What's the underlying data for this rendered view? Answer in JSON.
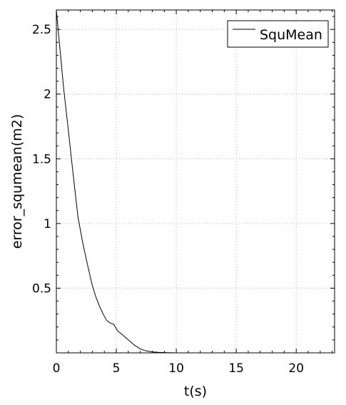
{
  "chart_data": {
    "type": "line",
    "xlabel": "t(s)",
    "ylabel": "error_squmean(m2)",
    "xlim": [
      0,
      23.2
    ],
    "ylim": [
      0,
      2.65
    ],
    "xticks": [
      0,
      5,
      10,
      15,
      20
    ],
    "xtick_labels": [
      "0",
      "5",
      "10",
      "15",
      "20"
    ],
    "yticks": [
      0.5,
      1,
      1.5,
      2,
      2.5
    ],
    "ytick_labels": [
      "0.5",
      "1",
      "1.5",
      "2",
      "2.5"
    ],
    "grid": true,
    "legend_position": "top-right",
    "series": [
      {
        "name": "SquMean",
        "color": "#000000",
        "x": [
          0,
          0.3,
          0.6,
          1.0,
          1.4,
          1.8,
          2.2,
          2.6,
          3.0,
          3.3,
          3.6,
          3.9,
          4.2,
          4.5,
          4.8,
          5.1,
          5.5,
          6.0,
          6.5,
          7.0,
          7.5,
          8.0,
          8.5,
          9.0,
          10.0
        ],
        "y": [
          2.65,
          2.35,
          2.05,
          1.72,
          1.38,
          1.05,
          0.85,
          0.68,
          0.52,
          0.43,
          0.36,
          0.3,
          0.25,
          0.23,
          0.22,
          0.17,
          0.14,
          0.1,
          0.06,
          0.03,
          0.015,
          0.008,
          0.004,
          0.002,
          0.0
        ]
      }
    ]
  }
}
